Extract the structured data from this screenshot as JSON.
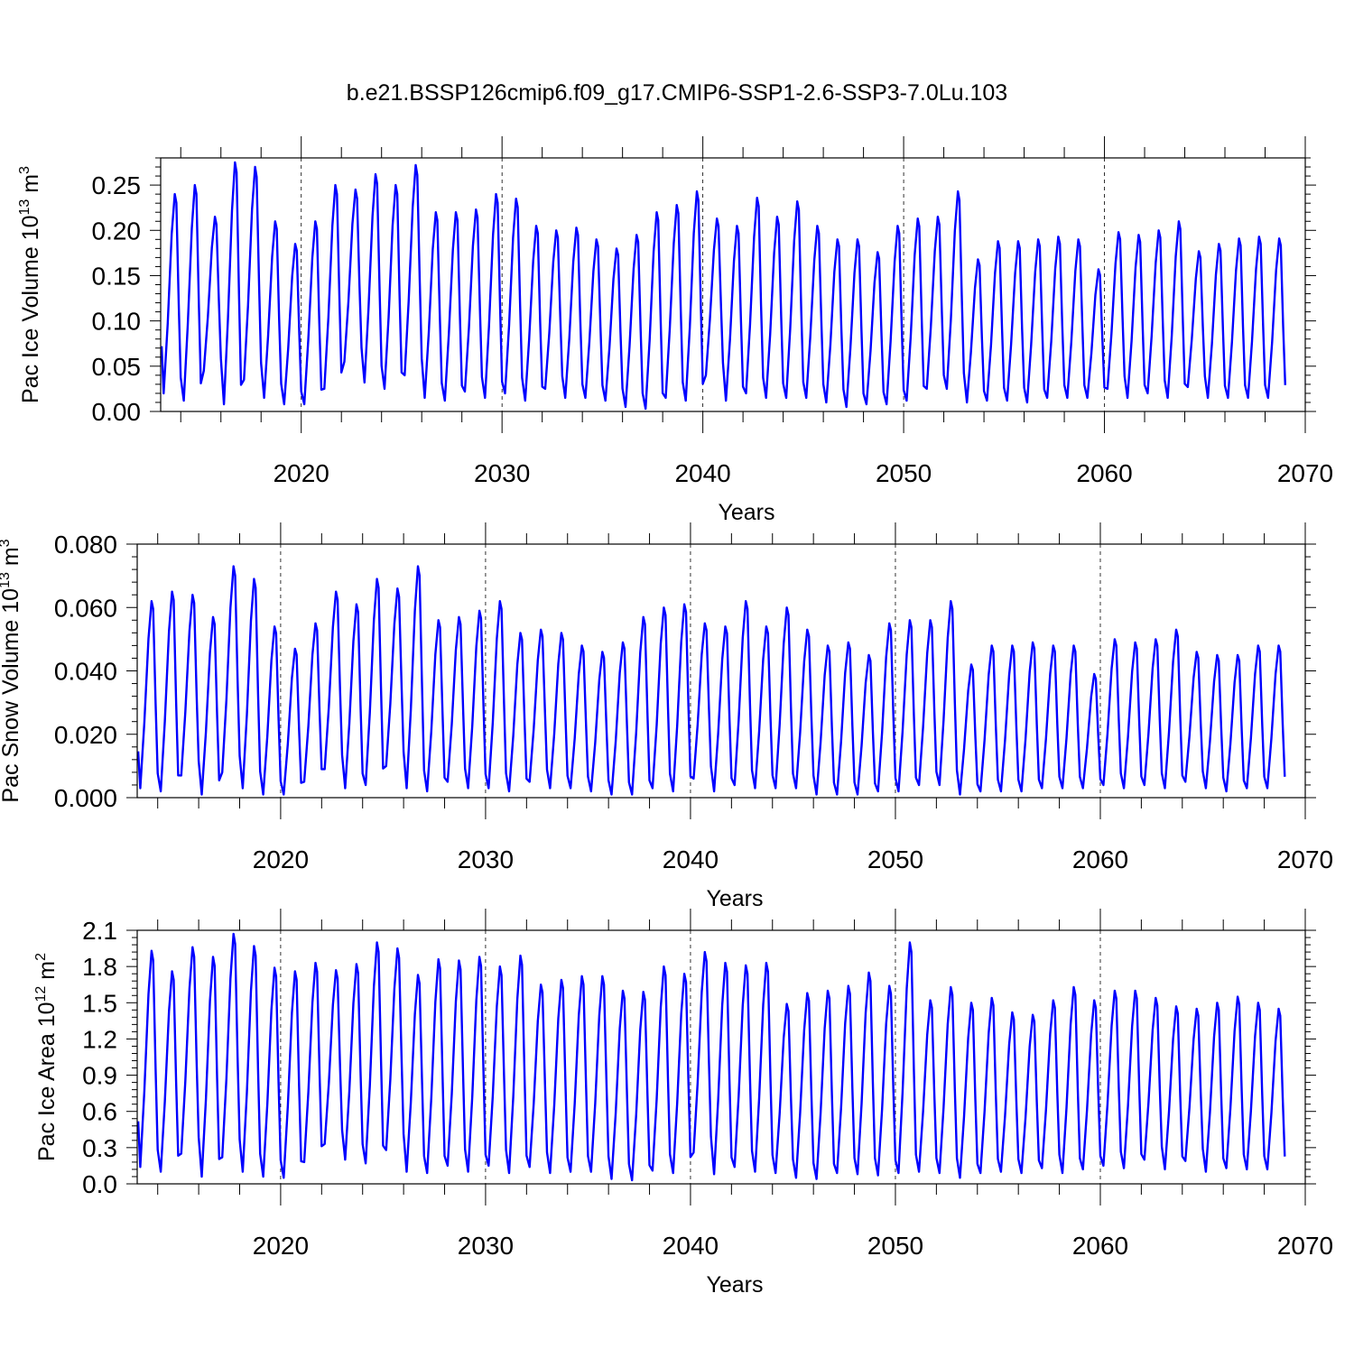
{
  "figure": {
    "title": "b.e21.BSSP126cmip6.f09_g17.CMIP6-SSP1-2.6-SSP3-7.0Lu.103"
  },
  "series_color": "#0000ff",
  "chart_data": [
    {
      "type": "line",
      "title": "",
      "xlabel": "Years",
      "ylabel": "Pac Ice Volume 10",
      "ylabel_exp": "13",
      "ylabel_unit": " m",
      "ylabel_unit_exp": "3",
      "xlim": [
        2013,
        2070
      ],
      "ylim": [
        0,
        0.28
      ],
      "yticks": [
        0.0,
        0.05,
        0.1,
        0.15,
        0.2,
        0.25
      ],
      "yticklabels": [
        "0.00",
        "0.05",
        "0.10",
        "0.15",
        "0.20",
        "0.25"
      ],
      "xticks": [
        2020,
        2030,
        2040,
        2050,
        2060,
        2070
      ],
      "xticklabels": [
        "2020",
        "2030",
        "2040",
        "2050",
        "2060",
        "2070"
      ],
      "grid": "dashed vertical lines at decades",
      "series": [
        {
          "name": "Pac Ice Volume",
          "year_start": 2014,
          "annual_max": [
            0.24,
            0.25,
            0.215,
            0.275,
            0.27,
            0.21,
            0.185,
            0.21,
            0.25,
            0.245,
            0.262,
            0.25,
            0.272,
            0.22,
            0.22,
            0.223,
            0.24,
            0.235,
            0.205,
            0.2,
            0.203,
            0.19,
            0.18,
            0.195,
            0.22,
            0.228,
            0.243,
            0.213,
            0.205,
            0.236,
            0.215,
            0.232,
            0.205,
            0.19,
            0.19,
            0.176,
            0.205,
            0.213,
            0.215,
            0.243,
            0.168,
            0.188,
            0.188,
            0.19,
            0.193,
            0.19,
            0.157,
            0.198,
            0.195,
            0.2,
            0.21,
            0.177,
            0.185,
            0.191,
            0.193,
            0.191
          ],
          "annual_min": [
            0.02,
            0.012,
            0.045,
            0.008,
            0.035,
            0.015,
            0.008,
            0.008,
            0.025,
            0.055,
            0.032,
            0.025,
            0.04,
            0.015,
            0.012,
            0.022,
            0.015,
            0.02,
            0.012,
            0.025,
            0.015,
            0.015,
            0.012,
            0.005,
            0.003,
            0.015,
            0.012,
            0.04,
            0.012,
            0.02,
            0.015,
            0.015,
            0.015,
            0.01,
            0.005,
            0.008,
            0.008,
            0.012,
            0.025,
            0.025,
            0.01,
            0.012,
            0.012,
            0.01,
            0.015,
            0.015,
            0.015,
            0.025,
            0.015,
            0.02,
            0.015,
            0.027,
            0.015,
            0.015,
            0.015,
            0.015
          ]
        }
      ]
    },
    {
      "type": "line",
      "title": "",
      "xlabel": "Years",
      "ylabel": "Pac Snow Volume 10",
      "ylabel_exp": "13",
      "ylabel_unit": " m",
      "ylabel_unit_exp": "3",
      "xlim": [
        2013,
        2070
      ],
      "ylim": [
        0,
        0.08
      ],
      "yticks": [
        0.0,
        0.02,
        0.04,
        0.06,
        0.08
      ],
      "yticklabels": [
        "0.000",
        "0.020",
        "0.040",
        "0.060",
        "0.080"
      ],
      "xticks": [
        2020,
        2030,
        2040,
        2050,
        2060,
        2070
      ],
      "xticklabels": [
        "2020",
        "2030",
        "2040",
        "2050",
        "2060",
        "2070"
      ],
      "grid": "dashed vertical lines at decades",
      "series": [
        {
          "name": "Pac Snow Volume",
          "year_start": 2014,
          "annual_max": [
            0.062,
            0.065,
            0.064,
            0.057,
            0.073,
            0.069,
            0.054,
            0.047,
            0.055,
            0.065,
            0.061,
            0.069,
            0.066,
            0.073,
            0.056,
            0.057,
            0.059,
            0.062,
            0.052,
            0.053,
            0.052,
            0.048,
            0.046,
            0.049,
            0.057,
            0.06,
            0.061,
            0.055,
            0.054,
            0.062,
            0.054,
            0.06,
            0.053,
            0.048,
            0.049,
            0.045,
            0.055,
            0.056,
            0.056,
            0.062,
            0.042,
            0.048,
            0.048,
            0.049,
            0.048,
            0.048,
            0.039,
            0.05,
            0.049,
            0.05,
            0.053,
            0.046,
            0.045,
            0.045,
            0.048,
            0.048
          ],
          "annual_min": [
            0.003,
            0.002,
            0.007,
            0.001,
            0.008,
            0.003,
            0.001,
            0.001,
            0.005,
            0.009,
            0.003,
            0.004,
            0.01,
            0.003,
            0.002,
            0.005,
            0.003,
            0.003,
            0.002,
            0.005,
            0.003,
            0.003,
            0.002,
            0.001,
            0.001,
            0.003,
            0.002,
            0.006,
            0.002,
            0.004,
            0.003,
            0.003,
            0.003,
            0.001,
            0.001,
            0.001,
            0.002,
            0.002,
            0.004,
            0.004,
            0.001,
            0.002,
            0.002,
            0.002,
            0.003,
            0.003,
            0.003,
            0.004,
            0.003,
            0.004,
            0.003,
            0.005,
            0.003,
            0.002,
            0.003,
            0.003
          ]
        }
      ]
    },
    {
      "type": "line",
      "title": "",
      "xlabel": "Years",
      "ylabel": "Pac Ice Area 10",
      "ylabel_exp": "12",
      "ylabel_unit": " m",
      "ylabel_unit_exp": "2",
      "xlim": [
        2013,
        2070
      ],
      "ylim": [
        0,
        2.1
      ],
      "yticks": [
        0.0,
        0.3,
        0.6,
        0.9,
        1.2,
        1.5,
        1.8,
        2.1
      ],
      "yticklabels": [
        "0.0",
        "0.3",
        "0.6",
        "0.9",
        "1.2",
        "1.5",
        "1.8",
        "2.1"
      ],
      "xticks": [
        2020,
        2030,
        2040,
        2050,
        2060,
        2070
      ],
      "xticklabels": [
        "2020",
        "2030",
        "2040",
        "2050",
        "2060",
        "2070"
      ],
      "grid": "dashed vertical lines at decades",
      "series": [
        {
          "name": "Pac Ice Area",
          "year_start": 2014,
          "annual_max": [
            1.93,
            1.76,
            1.96,
            1.88,
            2.07,
            1.97,
            1.79,
            1.76,
            1.83,
            1.77,
            1.82,
            2.0,
            1.95,
            1.73,
            1.86,
            1.85,
            1.88,
            1.8,
            1.89,
            1.65,
            1.69,
            1.72,
            1.72,
            1.6,
            1.59,
            1.8,
            1.74,
            1.92,
            1.83,
            1.81,
            1.83,
            1.49,
            1.58,
            1.6,
            1.64,
            1.75,
            1.64,
            2.0,
            1.52,
            1.63,
            1.5,
            1.54,
            1.42,
            1.4,
            1.52,
            1.63,
            1.52,
            1.6,
            1.6,
            1.54,
            1.47,
            1.45,
            1.5,
            1.55,
            1.5,
            1.45
          ],
          "annual_min": [
            0.14,
            0.1,
            0.25,
            0.06,
            0.22,
            0.1,
            0.06,
            0.05,
            0.18,
            0.33,
            0.2,
            0.17,
            0.28,
            0.1,
            0.09,
            0.15,
            0.1,
            0.15,
            0.09,
            0.14,
            0.09,
            0.1,
            0.1,
            0.04,
            0.03,
            0.11,
            0.09,
            0.26,
            0.08,
            0.14,
            0.1,
            0.09,
            0.05,
            0.04,
            0.09,
            0.08,
            0.07,
            0.09,
            0.1,
            0.09,
            0.05,
            0.09,
            0.1,
            0.09,
            0.13,
            0.09,
            0.12,
            0.15,
            0.13,
            0.2,
            0.12,
            0.19,
            0.1,
            0.13,
            0.12,
            0.12
          ]
        }
      ]
    }
  ]
}
